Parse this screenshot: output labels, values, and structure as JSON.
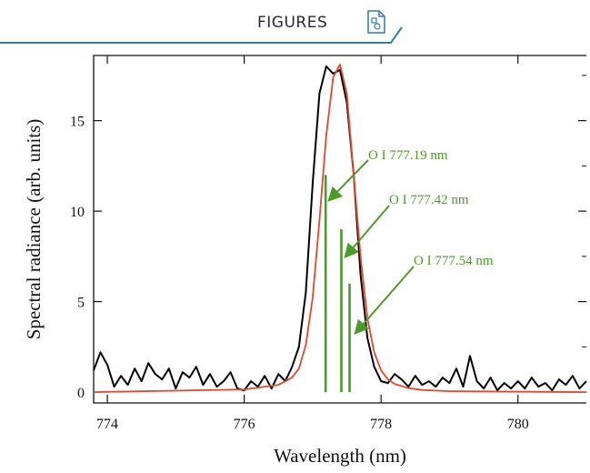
{
  "header": {
    "title": "FIGURES",
    "icon": "figure-document-icon",
    "accent_color": "#2f7fa3"
  },
  "chart_data": {
    "type": "line",
    "xlabel": "Wavelength (nm)",
    "ylabel": "Spectral radiance (arb. units)",
    "xlim": [
      773.8,
      781.0
    ],
    "ylim": [
      -0.6,
      18.6
    ],
    "x_ticks": [
      774,
      776,
      778,
      780
    ],
    "y_ticks": [
      0,
      5,
      10,
      15
    ],
    "grid": false,
    "series": [
      {
        "color": "#000000",
        "x": [
          773.8,
          773.9,
          774.0,
          774.1,
          774.2,
          774.3,
          774.4,
          774.5,
          774.6,
          774.7,
          774.8,
          774.9,
          775.0,
          775.1,
          775.2,
          775.3,
          775.4,
          775.5,
          775.6,
          775.7,
          775.8,
          775.9,
          776.0,
          776.1,
          776.2,
          776.3,
          776.4,
          776.5,
          776.6,
          776.7,
          776.8,
          776.9,
          777.0,
          777.1,
          777.2,
          777.3,
          777.4,
          777.5,
          777.6,
          777.7,
          777.8,
          777.9,
          778.0,
          778.1,
          778.2,
          778.3,
          778.4,
          778.5,
          778.6,
          778.7,
          778.8,
          778.9,
          779.0,
          779.1,
          779.2,
          779.3,
          779.4,
          779.5,
          779.6,
          779.7,
          779.8,
          779.9,
          780.0,
          780.1,
          780.2,
          780.3,
          780.4,
          780.5,
          780.6,
          780.7,
          780.8,
          780.9,
          781.0
        ],
        "y": [
          1.2,
          2.2,
          1.5,
          0.3,
          0.9,
          0.4,
          1.3,
          0.6,
          1.6,
          1.0,
          0.7,
          1.3,
          0.2,
          1.1,
          0.8,
          1.4,
          0.4,
          1.0,
          0.3,
          0.6,
          1.1,
          0.2,
          0.1,
          0.6,
          0.3,
          0.9,
          0.2,
          1.0,
          0.6,
          1.4,
          2.5,
          5.5,
          11.5,
          16.5,
          18.0,
          17.6,
          17.8,
          16.0,
          12.0,
          6.5,
          3.0,
          1.4,
          0.6,
          0.5,
          1.0,
          0.7,
          0.3,
          0.9,
          0.4,
          0.6,
          0.3,
          0.8,
          0.5,
          1.3,
          0.3,
          2.0,
          0.6,
          0.2,
          0.8,
          0.1,
          0.5,
          0.2,
          0.6,
          0.2,
          0.8,
          0.3,
          0.5,
          0.1,
          0.7,
          0.4,
          0.9,
          0.2,
          0.6
        ]
      },
      {
        "color": "#e8462c",
        "x": [
          773.8,
          776.0,
          776.5,
          776.7,
          776.8,
          776.9,
          777.0,
          777.1,
          777.2,
          777.3,
          777.4,
          777.5,
          777.6,
          777.7,
          777.8,
          777.9,
          778.0,
          778.1,
          778.2,
          778.4,
          778.6,
          779.0,
          781.0
        ],
        "y": [
          0.0,
          0.15,
          0.4,
          0.8,
          1.3,
          2.6,
          5.2,
          9.5,
          14.2,
          17.4,
          18.1,
          16.5,
          12.0,
          7.5,
          4.1,
          2.2,
          1.2,
          0.7,
          0.45,
          0.22,
          0.12,
          0.05,
          0.0
        ]
      }
    ],
    "stick_lines": {
      "color": "#4c9a2a",
      "x": [
        777.19,
        777.42,
        777.54
      ],
      "y": [
        12.0,
        9.0,
        6.0
      ]
    },
    "annotations": [
      {
        "text": "O I 777.19 nm",
        "color": "#4c9a2a"
      },
      {
        "text": "O I 777.42 nm",
        "color": "#4c9a2a"
      },
      {
        "text": "O I 777.54 nm",
        "color": "#4c9a2a"
      }
    ]
  }
}
